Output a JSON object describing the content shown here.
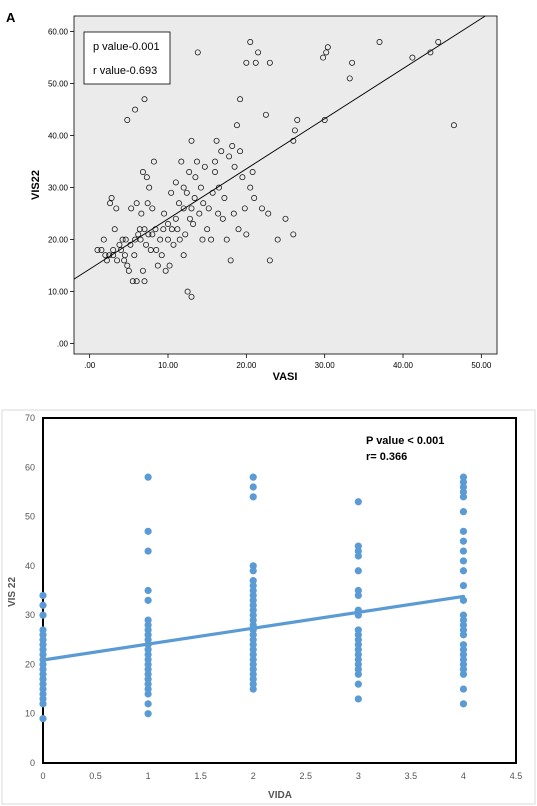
{
  "chart_data": [
    {
      "panel": "A",
      "type": "scatter",
      "xlabel": "VASI",
      "ylabel": "VIS22",
      "xlim": [
        -2,
        52
      ],
      "ylim": [
        -2,
        63
      ],
      "xticks": [
        0,
        10,
        20,
        30,
        40,
        50
      ],
      "yticks": [
        0,
        10,
        20,
        30,
        40,
        50,
        60
      ],
      "tick_format": 2,
      "grid": false,
      "background": "#ebebeb",
      "marker": "open-circle",
      "annotations": [
        "p value-0.001",
        "r value-0.693"
      ],
      "fit_line": {
        "x": [
          -2,
          50.5
        ],
        "y": [
          12.4,
          63
        ]
      },
      "points": [
        [
          1,
          18
        ],
        [
          1.5,
          18
        ],
        [
          1.8,
          20
        ],
        [
          2,
          17
        ],
        [
          2.2,
          16
        ],
        [
          2.5,
          17
        ],
        [
          2.6,
          27
        ],
        [
          2.8,
          28
        ],
        [
          3,
          17
        ],
        [
          3,
          18
        ],
        [
          3.2,
          22
        ],
        [
          3.4,
          26
        ],
        [
          3.5,
          16
        ],
        [
          3.8,
          19
        ],
        [
          4,
          18
        ],
        [
          4.2,
          20
        ],
        [
          4.4,
          16
        ],
        [
          4.5,
          17
        ],
        [
          4.6,
          20
        ],
        [
          4.8,
          15
        ],
        [
          5,
          14
        ],
        [
          5.2,
          19
        ],
        [
          5.3,
          26
        ],
        [
          5.5,
          12
        ],
        [
          5.7,
          17
        ],
        [
          5.8,
          20
        ],
        [
          6,
          12
        ],
        [
          6,
          27
        ],
        [
          6.2,
          21
        ],
        [
          6.4,
          22
        ],
        [
          6.5,
          20
        ],
        [
          6.6,
          25
        ],
        [
          6.8,
          14
        ],
        [
          6.8,
          33
        ],
        [
          7,
          22
        ],
        [
          7,
          12
        ],
        [
          7.2,
          19
        ],
        [
          7.3,
          32
        ],
        [
          7.4,
          27
        ],
        [
          7.5,
          21
        ],
        [
          7.6,
          30
        ],
        [
          7.8,
          18
        ],
        [
          8,
          21
        ],
        [
          8,
          26
        ],
        [
          8.2,
          35
        ],
        [
          8.4,
          22
        ],
        [
          8.5,
          18
        ],
        [
          8.7,
          15
        ],
        [
          9,
          20
        ],
        [
          9.2,
          17
        ],
        [
          9.4,
          22
        ],
        [
          9.5,
          25
        ],
        [
          9.7,
          14
        ],
        [
          10,
          20
        ],
        [
          10,
          23
        ],
        [
          10.2,
          15
        ],
        [
          10.4,
          29
        ],
        [
          10.5,
          22
        ],
        [
          10.7,
          19
        ],
        [
          11,
          24
        ],
        [
          11,
          31
        ],
        [
          11.2,
          22
        ],
        [
          11.4,
          27
        ],
        [
          11.5,
          20
        ],
        [
          11.7,
          35
        ],
        [
          12,
          17
        ],
        [
          12,
          26
        ],
        [
          12,
          30
        ],
        [
          12.2,
          21
        ],
        [
          12.4,
          29
        ],
        [
          12.5,
          10
        ],
        [
          12.7,
          33
        ],
        [
          12.8,
          24
        ],
        [
          13,
          9
        ],
        [
          13,
          26
        ],
        [
          13,
          39
        ],
        [
          13.2,
          23
        ],
        [
          13.4,
          28
        ],
        [
          13.5,
          32
        ],
        [
          13.7,
          35
        ],
        [
          14,
          25
        ],
        [
          14.2,
          30
        ],
        [
          14.4,
          20
        ],
        [
          14.5,
          27
        ],
        [
          14.7,
          34
        ],
        [
          15,
          22
        ],
        [
          15.2,
          26
        ],
        [
          15.5,
          20
        ],
        [
          15.7,
          29
        ],
        [
          16,
          33
        ],
        [
          16,
          35
        ],
        [
          16.2,
          39
        ],
        [
          16.4,
          25
        ],
        [
          16.5,
          30
        ],
        [
          16.8,
          37
        ],
        [
          17,
          24
        ],
        [
          17.2,
          28
        ],
        [
          17.5,
          20
        ],
        [
          17.8,
          36
        ],
        [
          18,
          16
        ],
        [
          18.2,
          38
        ],
        [
          18.4,
          25
        ],
        [
          18.5,
          34
        ],
        [
          18.8,
          42
        ],
        [
          19,
          22
        ],
        [
          19.2,
          37
        ],
        [
          19.5,
          32
        ],
        [
          19.8,
          26
        ],
        [
          20,
          21
        ],
        [
          20.5,
          30
        ],
        [
          20.8,
          33
        ],
        [
          21,
          28
        ],
        [
          21.2,
          54
        ],
        [
          21.5,
          56
        ],
        [
          22,
          26
        ],
        [
          22.5,
          44
        ],
        [
          22.8,
          25
        ],
        [
          23,
          16
        ],
        [
          23,
          54
        ],
        [
          24,
          20
        ],
        [
          25,
          24
        ],
        [
          26,
          21
        ],
        [
          26,
          39
        ],
        [
          26.2,
          41
        ],
        [
          26.5,
          43
        ],
        [
          29.8,
          55
        ],
        [
          30,
          43
        ],
        [
          30.2,
          56
        ],
        [
          30.4,
          57
        ],
        [
          33.2,
          51
        ],
        [
          33.5,
          54
        ],
        [
          37,
          58
        ],
        [
          41.2,
          55
        ],
        [
          43.5,
          56
        ],
        [
          44.5,
          58
        ],
        [
          46.5,
          42
        ],
        [
          4.8,
          43
        ],
        [
          5.8,
          45
        ],
        [
          7,
          47
        ],
        [
          13.8,
          56
        ],
        [
          19.2,
          47
        ],
        [
          20.5,
          58
        ],
        [
          20,
          54
        ]
      ]
    },
    {
      "panel": "B",
      "type": "scatter",
      "xlabel": "VIDA",
      "ylabel": "VIS 22",
      "xlim": [
        0,
        4.5
      ],
      "ylim": [
        0,
        70
      ],
      "xticks": [
        0,
        0.5,
        1,
        1.5,
        2,
        2.5,
        3,
        3.5,
        4,
        4.5
      ],
      "yticks": [
        0,
        10,
        20,
        30,
        40,
        50,
        60,
        70
      ],
      "grid": false,
      "marker_color": "#5b9bd5",
      "annotations": [
        "P value < 0.001",
        "r= 0.366"
      ],
      "fit_line": {
        "x": [
          0,
          4
        ],
        "y": [
          20.9,
          33.8
        ],
        "color": "#5b9bd5"
      },
      "series": [
        {
          "x": 0,
          "values": [
            9,
            12,
            13,
            14,
            15,
            16,
            17,
            18,
            19,
            20,
            21,
            22,
            23,
            24,
            25,
            26,
            27,
            30,
            32,
            34
          ]
        },
        {
          "x": 1,
          "values": [
            10,
            12,
            14,
            15,
            16,
            17,
            18,
            19,
            20,
            21,
            22,
            23,
            24,
            25,
            26,
            27,
            28,
            29,
            33,
            35,
            43,
            47,
            58
          ]
        },
        {
          "x": 2,
          "values": [
            15,
            16,
            17,
            18,
            19,
            20,
            21,
            22,
            23,
            24,
            25,
            26,
            27,
            28,
            29,
            30,
            31,
            32,
            33,
            34,
            35,
            36,
            37,
            39,
            40,
            54,
            56,
            58
          ]
        },
        {
          "x": 3,
          "values": [
            13,
            16,
            18,
            19,
            20,
            21,
            22,
            23,
            24,
            25,
            26,
            27,
            30,
            31,
            34,
            35,
            39,
            42,
            43,
            44,
            53
          ]
        },
        {
          "x": 4,
          "values": [
            12,
            15,
            18,
            19,
            20,
            21,
            22,
            23,
            24,
            26,
            27,
            28,
            29,
            30,
            33,
            36,
            39,
            41,
            43,
            45,
            47,
            51,
            54,
            55,
            56,
            57,
            58
          ]
        }
      ]
    }
  ]
}
